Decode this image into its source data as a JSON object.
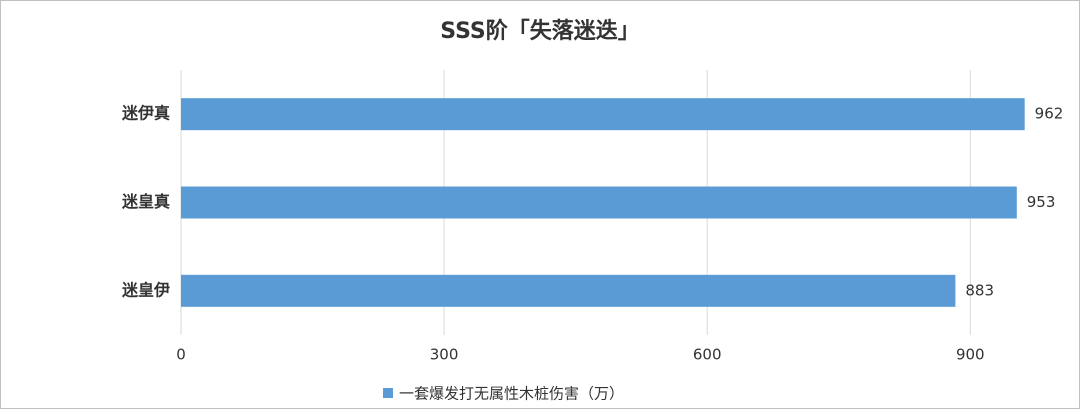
{
  "chart_data": {
    "type": "bar",
    "orientation": "horizontal",
    "title": "SSS阶「失落迷迭」",
    "categories": [
      "迷伊真",
      "迷皇真",
      "迷皇伊"
    ],
    "series": [
      {
        "name": "一套爆发打无属性木桩伤害（万）",
        "color": "#5b9bd5",
        "values": [
          962,
          953,
          883
        ]
      }
    ],
    "label_color": "#e8282b",
    "xlim": [
      0,
      1000
    ],
    "xticks": [
      0,
      300,
      600,
      900
    ],
    "grid": true,
    "legend": "bottom"
  }
}
